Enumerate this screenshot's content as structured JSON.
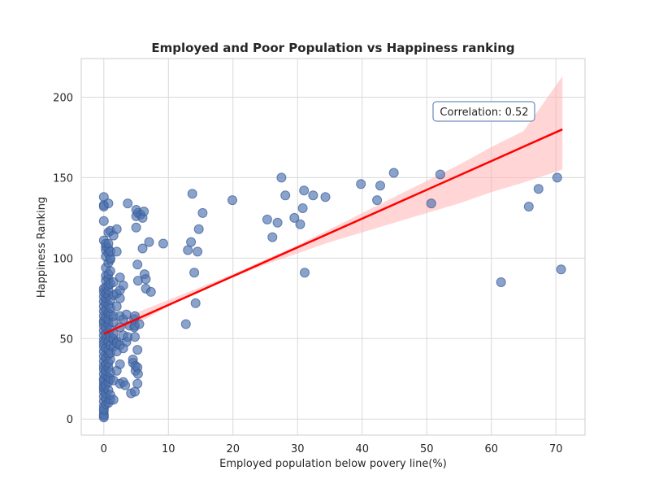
{
  "chart_data": {
    "type": "scatter",
    "title": "Employed and Poor Population vs Happiness ranking",
    "xlabel": "Employed population below povery line(%)",
    "ylabel": "Happiness Ranking",
    "xlim": [
      -3.5,
      74.5
    ],
    "ylim": [
      -10,
      224
    ],
    "xticks": [
      0,
      10,
      20,
      30,
      40,
      50,
      60,
      70
    ],
    "yticks": [
      0,
      50,
      100,
      150,
      200
    ],
    "grid": true,
    "annotation": "Correlation: 0.52",
    "colors": {
      "points": "#4c72b0",
      "regression": "#ff0000",
      "band": "#ffb3b3",
      "annotation_border": "#4c72b0"
    },
    "regression": {
      "x": [
        0,
        71
      ],
      "y": [
        53,
        180
      ]
    },
    "confidence_band": {
      "x": [
        0,
        5,
        10,
        15,
        20,
        25,
        30,
        35,
        40,
        45,
        50,
        55,
        60,
        65,
        71
      ],
      "lower": [
        49,
        59,
        70,
        80,
        88,
        96,
        103,
        110,
        116,
        122,
        128,
        134,
        141,
        147,
        155
      ],
      "upper": [
        57,
        66,
        74,
        82,
        90,
        99,
        108,
        118,
        128,
        138,
        148,
        158,
        169,
        179,
        213
      ]
    },
    "points": {
      "x": [
        0,
        0,
        0,
        0,
        0,
        0,
        0,
        0,
        0,
        0,
        0,
        0,
        0,
        0,
        0,
        0,
        0,
        0,
        0,
        0,
        0,
        0,
        0,
        0,
        0,
        0,
        0,
        0,
        0,
        0,
        0,
        0,
        0,
        0,
        0,
        0,
        0,
        0,
        0,
        0,
        0.3,
        0.3,
        0.3,
        0.3,
        0.3,
        0.3,
        0.3,
        0.3,
        0.3,
        0.3,
        0.3,
        0.3,
        0.3,
        0.3,
        0.3,
        0.3,
        0.3,
        0.3,
        0.3,
        0.3,
        0.3,
        0.3,
        0.3,
        0.3,
        0.3,
        0.7,
        0.7,
        0.7,
        0.7,
        0.7,
        0.7,
        0.7,
        0.7,
        0.7,
        0.7,
        0.7,
        0.7,
        0.7,
        0.7,
        0.7,
        0.7,
        0.7,
        0.7,
        0.7,
        0.7,
        0.7,
        0.7,
        0.7,
        0.7,
        0.7,
        1,
        1,
        1,
        1,
        1,
        1,
        1,
        1,
        1,
        1,
        1,
        1,
        1,
        1,
        1,
        1,
        1,
        1,
        1.5,
        1.5,
        1.5,
        1.5,
        1.5,
        1.5,
        1.5,
        1.5,
        1.5,
        1.5,
        1.5,
        2,
        2,
        2,
        2,
        2,
        2,
        2,
        2,
        2.5,
        2.5,
        2.5,
        2.5,
        2.5,
        2.5,
        2.5,
        2.5,
        3,
        3,
        3,
        3,
        3,
        3.3,
        3.5,
        3.5,
        3.7,
        3.7,
        4,
        4.2,
        4.5,
        4.5,
        4.7,
        4.7,
        4.8,
        4.8,
        4.8,
        4.8,
        4.9,
        4.9,
        5,
        5,
        5,
        5.2,
        5.2,
        5.2,
        5.2,
        5.3,
        5.3,
        5.3,
        5.5,
        5.7,
        6,
        6,
        6.2,
        6.3,
        6.5,
        6.5,
        7,
        7.3,
        9.2,
        12.7,
        13,
        13.5,
        13.7,
        14,
        14.2,
        14.5,
        14.7,
        15.3,
        19.9,
        25.3,
        26.1,
        26.9,
        27.5,
        28.1,
        29.5,
        30.4,
        30.8,
        31,
        31.1,
        32.4,
        34.3,
        39.8,
        42.3,
        42.8,
        44.9,
        50.7,
        52.1,
        61.5,
        65.8,
        67.3,
        70.2,
        70.8
      ],
      "y": [
        1,
        3,
        5,
        8,
        11,
        14,
        17,
        19,
        22,
        25,
        28,
        31,
        33,
        36,
        39,
        42,
        45,
        49,
        52,
        55,
        58,
        61,
        64,
        67,
        70,
        73,
        76,
        79,
        81,
        111,
        123,
        133,
        138,
        132,
        2,
        6,
        20,
        24,
        47,
        60,
        9,
        13,
        16,
        21,
        27,
        30,
        34,
        38,
        44,
        50,
        53,
        57,
        63,
        68,
        72,
        75,
        78,
        82,
        86,
        89,
        94,
        101,
        107,
        109,
        105,
        10,
        18,
        23,
        26,
        32,
        35,
        40,
        43,
        48,
        54,
        59,
        62,
        66,
        71,
        77,
        80,
        83,
        87,
        90,
        97,
        103,
        106,
        109,
        116,
        134,
        12,
        15,
        25,
        29,
        37,
        41,
        46,
        51,
        56,
        65,
        69,
        74,
        84,
        92,
        99,
        100,
        104,
        117,
        12,
        24,
        45,
        49,
        50,
        53,
        60,
        64,
        77,
        85,
        114,
        30,
        42,
        48,
        47,
        70,
        78,
        104,
        118,
        22,
        34,
        46,
        57,
        64,
        75,
        80,
        88,
        23,
        44,
        52,
        62,
        83,
        21,
        48,
        65,
        51,
        134,
        58,
        16,
        35,
        37,
        57,
        62,
        64,
        51,
        17,
        58,
        30,
        33,
        119,
        126,
        130,
        32,
        22,
        43,
        96,
        28,
        86,
        128,
        59,
        127,
        106,
        125,
        129,
        90,
        81,
        87,
        110,
        79,
        109,
        59,
        105,
        110,
        140,
        91,
        72,
        104,
        118,
        128,
        136,
        124,
        113,
        122,
        150,
        139,
        125,
        121,
        131,
        142,
        91,
        139,
        138,
        146,
        136,
        145,
        153,
        134,
        152,
        85,
        132,
        143,
        150,
        93
      ]
    }
  }
}
